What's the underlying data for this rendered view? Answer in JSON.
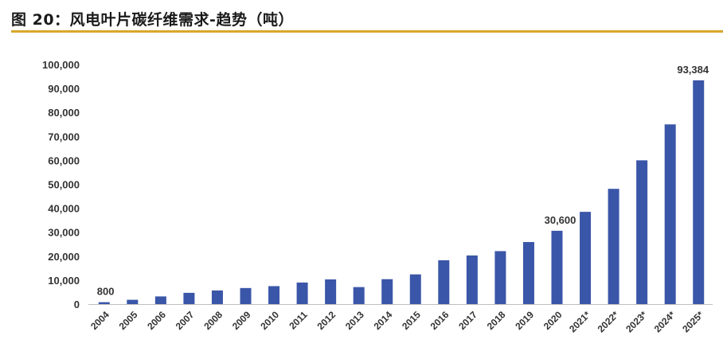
{
  "figure": {
    "title": "图 20：风电叶片碳纤维需求-趋势（吨）",
    "accent_color": "#d9a82b"
  },
  "chart_data": {
    "type": "bar",
    "categories": [
      "2004",
      "2005",
      "2006",
      "2007",
      "2008",
      "2009",
      "2010",
      "2011",
      "2012",
      "2013",
      "2014",
      "2015",
      "2016",
      "2017",
      "2018",
      "2019",
      "2020",
      "2021*",
      "2022*",
      "2023*",
      "2024*",
      "2025*"
    ],
    "values": [
      800,
      1800,
      3200,
      4700,
      5700,
      6700,
      7500,
      9000,
      10300,
      7100,
      10400,
      12400,
      18300,
      20300,
      22100,
      25900,
      30600,
      38500,
      48100,
      60000,
      75000,
      93384
    ],
    "data_labels": [
      {
        "category": "2004",
        "text": "800"
      },
      {
        "category": "2020",
        "text": "30,600"
      },
      {
        "category": "2025*",
        "text": "93,384"
      }
    ],
    "y_ticks": [
      "0",
      "10,000",
      "20,000",
      "30,000",
      "40,000",
      "50,000",
      "60,000",
      "70,000",
      "80,000",
      "90,000",
      "100,000"
    ],
    "ylim": [
      0,
      100000
    ],
    "bar_color": "#3a56a8",
    "grid": false,
    "legend": "none"
  }
}
